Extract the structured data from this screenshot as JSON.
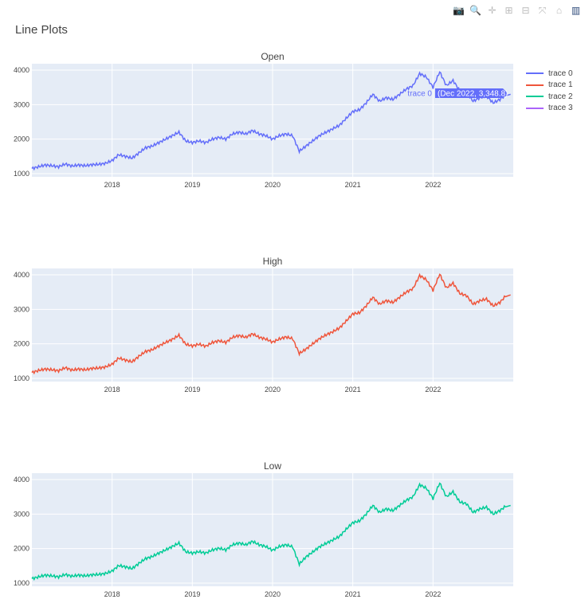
{
  "title": "Line Plots",
  "toolbar": {
    "icons": [
      "camera-icon",
      "zoom-icon",
      "pan-icon",
      "zoom-in-icon",
      "zoom-out-icon",
      "autoscale-icon",
      "home-icon",
      "plotly-logo-icon"
    ],
    "glyphs": [
      "📷",
      "🔍",
      "✛",
      "⊞",
      "⊟",
      "⤧",
      "⌂",
      "▥"
    ]
  },
  "legend": [
    {
      "name": "trace 0",
      "color": "#636efa"
    },
    {
      "name": "trace 1",
      "color": "#EF553B"
    },
    {
      "name": "trace 2",
      "color": "#00cc96"
    },
    {
      "name": "trace 3",
      "color": "#ab63fa"
    }
  ],
  "hover": {
    "trace": "trace 0",
    "text": "(Dec 2022, 3,348.8)"
  },
  "chart_data": [
    {
      "type": "line",
      "title": "Open",
      "trace": "trace 0",
      "color": "#636efa",
      "x_start": "2017-01",
      "x_step": "month",
      "xlim": [
        2017.0,
        2023.0
      ],
      "ylim": [
        908,
        4185
      ],
      "xticks": [
        "2018",
        "2019",
        "2020",
        "2021",
        "2022"
      ],
      "yticks": [
        "1000",
        "2000",
        "3000",
        "4000"
      ],
      "values": [
        1150,
        1200,
        1250,
        1230,
        1200,
        1280,
        1220,
        1250,
        1230,
        1260,
        1270,
        1300,
        1380,
        1550,
        1500,
        1450,
        1600,
        1750,
        1800,
        1900,
        2000,
        2100,
        2200,
        1950,
        1900,
        1950,
        1900,
        2000,
        2050,
        2000,
        2150,
        2200,
        2150,
        2250,
        2150,
        2100,
        2000,
        2100,
        2150,
        2100,
        1650,
        1800,
        1950,
        2100,
        2200,
        2300,
        2400,
        2600,
        2800,
        2850,
        3050,
        3300,
        3100,
        3200,
        3150,
        3300,
        3450,
        3550,
        3900,
        3800,
        3500,
        3950,
        3550,
        3700,
        3400,
        3350,
        3100,
        3200,
        3250,
        3050,
        3150,
        3300
      ]
    },
    {
      "type": "line",
      "title": "High",
      "trace": "trace 1",
      "color": "#EF553B",
      "x_start": "2017-01",
      "x_step": "month",
      "xlim": [
        2017.0,
        2023.0
      ],
      "ylim": [
        908,
        4185
      ],
      "xticks": [
        "2018",
        "2019",
        "2020",
        "2021",
        "2022"
      ],
      "yticks": [
        "1000",
        "2000",
        "3000",
        "4000"
      ],
      "values": [
        1170,
        1230,
        1270,
        1250,
        1220,
        1310,
        1240,
        1270,
        1250,
        1290,
        1300,
        1330,
        1410,
        1590,
        1530,
        1480,
        1640,
        1780,
        1830,
        1940,
        2040,
        2130,
        2250,
        1990,
        1940,
        1990,
        1930,
        2040,
        2090,
        2040,
        2190,
        2240,
        2190,
        2290,
        2190,
        2140,
        2050,
        2140,
        2200,
        2150,
        1720,
        1850,
        2000,
        2150,
        2260,
        2350,
        2460,
        2660,
        2870,
        2900,
        3100,
        3350,
        3150,
        3250,
        3200,
        3350,
        3500,
        3600,
        3980,
        3860,
        3550,
        4020,
        3620,
        3760,
        3460,
        3400,
        3150,
        3250,
        3300,
        3100,
        3200,
        3420
      ]
    },
    {
      "type": "line",
      "title": "Low",
      "trace": "trace 2",
      "color": "#00cc96",
      "x_start": "2017-01",
      "x_step": "month",
      "xlim": [
        2017.0,
        2023.0
      ],
      "ylim": [
        908,
        4185
      ],
      "xticks": [
        "2018",
        "2019",
        "2020",
        "2021",
        "2022"
      ],
      "yticks": [
        "1000",
        "2000",
        "3000",
        "4000"
      ],
      "values": [
        1130,
        1180,
        1230,
        1210,
        1180,
        1250,
        1200,
        1230,
        1210,
        1240,
        1250,
        1280,
        1350,
        1510,
        1470,
        1420,
        1570,
        1710,
        1770,
        1870,
        1960,
        2060,
        2160,
        1910,
        1870,
        1910,
        1870,
        1960,
        2010,
        1960,
        2110,
        2160,
        2110,
        2210,
        2110,
        2060,
        1950,
        2060,
        2110,
        2050,
        1550,
        1760,
        1900,
        2050,
        2150,
        2250,
        2350,
        2560,
        2750,
        2800,
        3000,
        3250,
        3050,
        3150,
        3100,
        3250,
        3400,
        3500,
        3850,
        3750,
        3450,
        3900,
        3500,
        3650,
        3350,
        3300,
        3050,
        3150,
        3200,
        3000,
        3100,
        3250
      ]
    }
  ]
}
